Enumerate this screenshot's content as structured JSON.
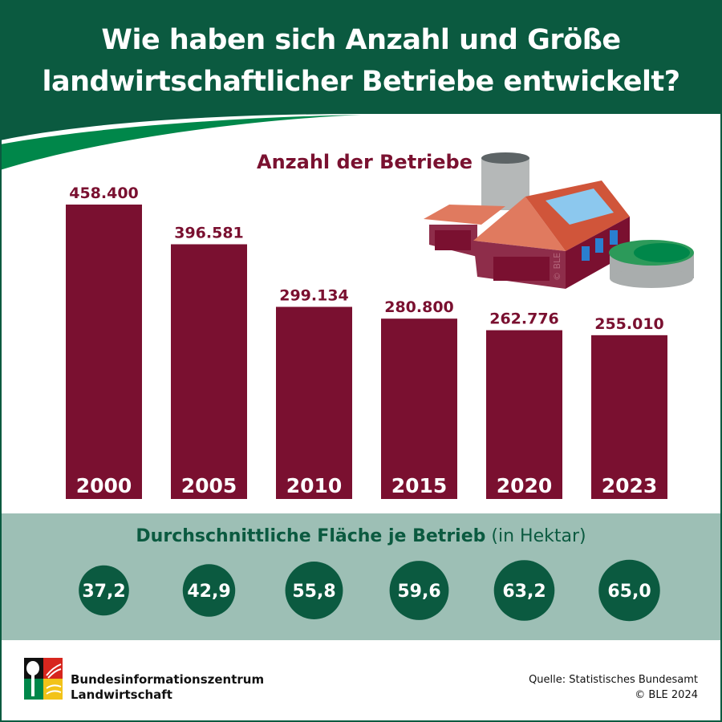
{
  "header": {
    "title_line1": "Wie haben sich Anzahl und Größe",
    "title_line2": "landwirtschaftlicher Betriebe entwickelt?"
  },
  "chart_data": {
    "type": "bar",
    "title": "Anzahl der Betriebe",
    "categories": [
      "2000",
      "2005",
      "2010",
      "2015",
      "2020",
      "2023"
    ],
    "values": [
      458400,
      396581,
      299134,
      280800,
      262776,
      255010
    ],
    "value_labels": [
      "458.400",
      "396.581",
      "299.134",
      "280.800",
      "262.776",
      "255.010"
    ],
    "ylim": [
      0,
      458400
    ],
    "grid": false,
    "bar_color": "#7a1030",
    "secondary": {
      "title": "Durchschnittliche Fläche je Betrieb",
      "unit": "(in Hektar)",
      "values": [
        37.2,
        42.9,
        55.8,
        59.6,
        63.2,
        65.0
      ],
      "value_labels": [
        "37,2",
        "42,9",
        "55,8",
        "59,6",
        "63,2",
        "65,0"
      ],
      "circle_color": "#0b5a40"
    }
  },
  "illustration": {
    "watermark": "© BLE",
    "icon": "farm-illustration-icon"
  },
  "colors": {
    "header": "#0b5a40",
    "accent_green": "#00874a",
    "band": "#9dbfb5"
  },
  "footer": {
    "logo_line1": "Bundesinformationszentrum",
    "logo_line2": "Landwirtschaft",
    "source": "Quelle: Statistisches Bundesamt",
    "copyright": "© BLE 2024"
  }
}
